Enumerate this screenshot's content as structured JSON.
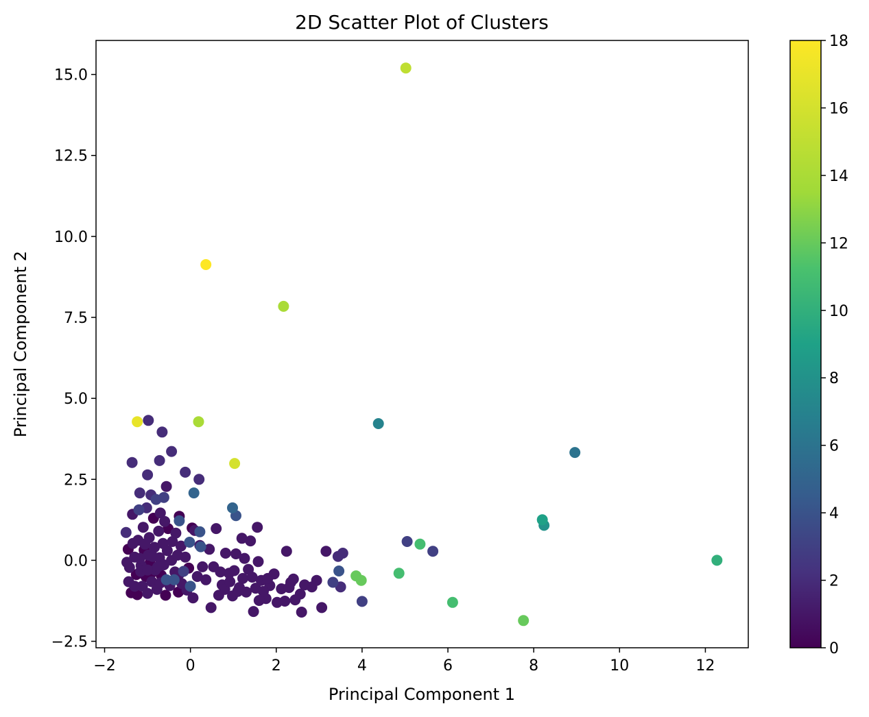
{
  "chart_data": {
    "type": "scatter",
    "title": "2D Scatter Plot of Clusters",
    "xlabel": "Principal Component 1",
    "ylabel": "Principal Component 2",
    "xlim": [
      -2.2,
      13.0
    ],
    "ylim": [
      -2.7,
      16.05
    ],
    "x_ticks": [
      -2,
      0,
      2,
      4,
      6,
      8,
      10,
      12
    ],
    "x_tick_labels": [
      "−2",
      "0",
      "2",
      "4",
      "6",
      "8",
      "10",
      "12"
    ],
    "y_ticks": [
      -2.5,
      0.0,
      2.5,
      5.0,
      7.5,
      10.0,
      12.5,
      15.0
    ],
    "y_tick_labels": [
      "−2.5",
      "0.0",
      "2.5",
      "5.0",
      "7.5",
      "10.0",
      "12.5",
      "15.0"
    ],
    "grid": false,
    "colorbar": {
      "colormap": "viridis",
      "range": [
        0,
        18
      ],
      "ticks": [
        0,
        2,
        4,
        6,
        8,
        10,
        12,
        14,
        16,
        18
      ],
      "tick_labels": [
        "0",
        "2",
        "4",
        "6",
        "8",
        "10",
        "12",
        "14",
        "16",
        "18"
      ]
    },
    "points": [
      {
        "x": 5.02,
        "y": 15.2,
        "c": 15
      },
      {
        "x": 0.36,
        "y": 9.13,
        "c": 18
      },
      {
        "x": 2.17,
        "y": 7.84,
        "c": 14
      },
      {
        "x": -1.24,
        "y": 4.28,
        "c": 17
      },
      {
        "x": 0.19,
        "y": 4.28,
        "c": 14
      },
      {
        "x": 1.03,
        "y": 2.99,
        "c": 16
      },
      {
        "x": 4.38,
        "y": 4.22,
        "c": 7
      },
      {
        "x": 8.96,
        "y": 3.33,
        "c": 6
      },
      {
        "x": 8.2,
        "y": 1.25,
        "c": 9
      },
      {
        "x": 8.24,
        "y": 1.08,
        "c": 8
      },
      {
        "x": 12.27,
        "y": 0.0,
        "c": 10
      },
      {
        "x": 5.35,
        "y": 0.5,
        "c": 11
      },
      {
        "x": 5.05,
        "y": 0.58,
        "c": 3
      },
      {
        "x": 5.65,
        "y": 0.28,
        "c": 3
      },
      {
        "x": 4.86,
        "y": -0.4,
        "c": 11
      },
      {
        "x": 6.11,
        "y": -1.3,
        "c": 11
      },
      {
        "x": 7.76,
        "y": -1.86,
        "c": 12
      },
      {
        "x": 3.86,
        "y": -0.48,
        "c": 12
      },
      {
        "x": 3.98,
        "y": -0.62,
        "c": 12
      },
      {
        "x": 4.0,
        "y": -1.27,
        "c": 3
      },
      {
        "x": 3.46,
        "y": -0.33,
        "c": 4
      },
      {
        "x": 3.32,
        "y": -0.68,
        "c": 3
      },
      {
        "x": 3.5,
        "y": -0.82,
        "c": 2
      },
      {
        "x": 3.55,
        "y": 0.22,
        "c": 2
      },
      {
        "x": 3.44,
        "y": 0.12,
        "c": 2
      },
      {
        "x": 3.16,
        "y": 0.28,
        "c": 1
      },
      {
        "x": 3.06,
        "y": -1.46,
        "c": 1
      },
      {
        "x": 2.94,
        "y": -0.62,
        "c": 1
      },
      {
        "x": 2.83,
        "y": -0.82,
        "c": 1
      },
      {
        "x": 2.66,
        "y": -0.76,
        "c": 1
      },
      {
        "x": 2.56,
        "y": -1.04,
        "c": 1
      },
      {
        "x": 2.59,
        "y": -1.6,
        "c": 1
      },
      {
        "x": 2.44,
        "y": -1.22,
        "c": 1
      },
      {
        "x": 2.34,
        "y": -0.68,
        "c": 1
      },
      {
        "x": 2.24,
        "y": 0.28,
        "c": 1
      },
      {
        "x": 2.2,
        "y": -1.26,
        "c": 1
      },
      {
        "x": 2.12,
        "y": -0.88,
        "c": 1
      },
      {
        "x": 2.02,
        "y": -1.3,
        "c": 1
      },
      {
        "x": 1.95,
        "y": -0.42,
        "c": 1
      },
      {
        "x": 1.85,
        "y": -0.78,
        "c": 1
      },
      {
        "x": 1.76,
        "y": -1.18,
        "c": 1
      },
      {
        "x": 1.65,
        "y": -0.62,
        "c": 1
      },
      {
        "x": 1.58,
        "y": -0.04,
        "c": 1
      },
      {
        "x": 1.56,
        "y": 1.02,
        "c": 1
      },
      {
        "x": 1.47,
        "y": -1.58,
        "c": 1
      },
      {
        "x": 1.4,
        "y": 0.6,
        "c": 1
      },
      {
        "x": 1.35,
        "y": -0.28,
        "c": 1
      },
      {
        "x": 1.26,
        "y": 0.06,
        "c": 1
      },
      {
        "x": 1.2,
        "y": 0.68,
        "c": 1
      },
      {
        "x": 1.14,
        "y": -0.84,
        "c": 1
      },
      {
        "x": 1.06,
        "y": 0.2,
        "c": 1
      },
      {
        "x": 0.98,
        "y": -1.1,
        "c": 1
      },
      {
        "x": 0.9,
        "y": -0.4,
        "c": 1
      },
      {
        "x": 0.82,
        "y": 0.22,
        "c": 1
      },
      {
        "x": 0.74,
        "y": -0.76,
        "c": 1
      },
      {
        "x": 0.66,
        "y": -1.08,
        "c": 1
      },
      {
        "x": 0.6,
        "y": 0.98,
        "c": 1
      },
      {
        "x": 0.54,
        "y": -0.2,
        "c": 1
      },
      {
        "x": 0.48,
        "y": -1.46,
        "c": 1
      },
      {
        "x": 0.44,
        "y": 0.34,
        "c": 1
      },
      {
        "x": 0.36,
        "y": -0.6,
        "c": 1
      },
      {
        "x": 0.28,
        "y": -0.2,
        "c": 1
      },
      {
        "x": 0.22,
        "y": 0.46,
        "c": 1
      },
      {
        "x": 0.16,
        "y": -0.5,
        "c": 1
      },
      {
        "x": 0.1,
        "y": 0.92,
        "c": 1
      },
      {
        "x": 0.06,
        "y": -1.16,
        "c": 1
      },
      {
        "x": 0.04,
        "y": 1.0,
        "c": 0
      },
      {
        "x": 0.08,
        "y": 2.08,
        "c": 5
      },
      {
        "x": 0.2,
        "y": 2.5,
        "c": 2
      },
      {
        "x": 0.22,
        "y": 0.88,
        "c": 4
      },
      {
        "x": 0.24,
        "y": 0.42,
        "c": 4
      },
      {
        "x": 0.0,
        "y": -0.8,
        "c": 4
      },
      {
        "x": -0.02,
        "y": 0.56,
        "c": 4
      },
      {
        "x": -0.12,
        "y": 2.72,
        "c": 2
      },
      {
        "x": -0.26,
        "y": 1.22,
        "c": 4
      },
      {
        "x": -0.26,
        "y": 1.36,
        "c": 0
      },
      {
        "x": -0.44,
        "y": 3.36,
        "c": 2
      },
      {
        "x": -0.66,
        "y": 3.96,
        "c": 2
      },
      {
        "x": -0.72,
        "y": 3.08,
        "c": 2
      },
      {
        "x": -0.98,
        "y": 4.32,
        "c": 2
      },
      {
        "x": -1.0,
        "y": 2.64,
        "c": 2
      },
      {
        "x": -0.56,
        "y": 2.28,
        "c": 1
      },
      {
        "x": -0.62,
        "y": 1.94,
        "c": 3
      },
      {
        "x": -1.36,
        "y": 3.02,
        "c": 2
      },
      {
        "x": -1.18,
        "y": 2.08,
        "c": 2
      },
      {
        "x": 0.98,
        "y": 1.62,
        "c": 5
      },
      {
        "x": 1.06,
        "y": 1.38,
        "c": 4
      },
      {
        "x": -1.5,
        "y": 0.86,
        "c": 2
      },
      {
        "x": -1.45,
        "y": 0.34,
        "c": 0
      },
      {
        "x": -1.42,
        "y": -0.22,
        "c": 1
      },
      {
        "x": -1.44,
        "y": -0.66,
        "c": 1
      },
      {
        "x": -1.38,
        "y": -1.0,
        "c": 0
      },
      {
        "x": -1.35,
        "y": 1.42,
        "c": 1
      },
      {
        "x": -1.3,
        "y": 0.1,
        "c": 1
      },
      {
        "x": -1.26,
        "y": -0.44,
        "c": 0
      },
      {
        "x": -1.24,
        "y": -1.06,
        "c": 0
      },
      {
        "x": -1.22,
        "y": 0.62,
        "c": 1
      },
      {
        "x": -1.2,
        "y": 1.56,
        "c": 3
      },
      {
        "x": -1.15,
        "y": -0.16,
        "c": 1
      },
      {
        "x": -1.12,
        "y": -0.8,
        "c": 1
      },
      {
        "x": -1.1,
        "y": 1.02,
        "c": 1
      },
      {
        "x": -1.08,
        "y": 0.32,
        "c": 0
      },
      {
        "x": -1.04,
        "y": -0.5,
        "c": 0
      },
      {
        "x": -1.02,
        "y": 1.62,
        "c": 2
      },
      {
        "x": -1.0,
        "y": -1.02,
        "c": 1
      },
      {
        "x": -0.96,
        "y": 0.7,
        "c": 1
      },
      {
        "x": -0.94,
        "y": -0.08,
        "c": 0
      },
      {
        "x": -0.92,
        "y": 2.02,
        "c": 2
      },
      {
        "x": -0.9,
        "y": -0.66,
        "c": 1
      },
      {
        "x": -0.86,
        "y": 1.3,
        "c": 0
      },
      {
        "x": -0.84,
        "y": 0.4,
        "c": 1
      },
      {
        "x": -0.82,
        "y": -0.3,
        "c": 1
      },
      {
        "x": -0.8,
        "y": 1.88,
        "c": 3
      },
      {
        "x": -0.78,
        "y": -0.9,
        "c": 1
      },
      {
        "x": -0.74,
        "y": 0.9,
        "c": 1
      },
      {
        "x": -0.72,
        "y": 0.08,
        "c": 1
      },
      {
        "x": -0.7,
        "y": 1.46,
        "c": 1
      },
      {
        "x": -0.68,
        "y": -0.46,
        "c": 0
      },
      {
        "x": -0.64,
        "y": 0.52,
        "c": 1
      },
      {
        "x": -0.62,
        "y": -0.14,
        "c": 1
      },
      {
        "x": -0.6,
        "y": 1.2,
        "c": 1
      },
      {
        "x": -0.58,
        "y": -1.08,
        "c": 0
      },
      {
        "x": -0.56,
        "y": -0.6,
        "c": 4
      },
      {
        "x": -0.54,
        "y": 0.3,
        "c": 1
      },
      {
        "x": -0.52,
        "y": 0.98,
        "c": 0
      },
      {
        "x": -0.48,
        "y": -0.78,
        "c": 1
      },
      {
        "x": -0.44,
        "y": 0.0,
        "c": 1
      },
      {
        "x": -0.42,
        "y": 0.58,
        "c": 1
      },
      {
        "x": -0.38,
        "y": -0.6,
        "c": 4
      },
      {
        "x": -0.36,
        "y": -0.36,
        "c": 1
      },
      {
        "x": -0.34,
        "y": 0.84,
        "c": 1
      },
      {
        "x": -0.3,
        "y": 0.16,
        "c": 1
      },
      {
        "x": -0.28,
        "y": -0.98,
        "c": 0
      },
      {
        "x": -0.26,
        "y": -0.42,
        "c": 1
      },
      {
        "x": -0.22,
        "y": 0.44,
        "c": 1
      },
      {
        "x": -0.2,
        "y": -0.72,
        "c": 1
      },
      {
        "x": -0.16,
        "y": -0.34,
        "c": 3
      },
      {
        "x": -0.12,
        "y": 0.1,
        "c": 1
      },
      {
        "x": -0.08,
        "y": -0.92,
        "c": 1
      },
      {
        "x": -0.04,
        "y": -0.24,
        "c": 0
      },
      {
        "x": -1.48,
        "y": -0.06,
        "c": 1
      },
      {
        "x": -1.34,
        "y": 0.52,
        "c": 1
      },
      {
        "x": -1.3,
        "y": -0.8,
        "c": 1
      },
      {
        "x": -1.18,
        "y": 0.06,
        "c": 1
      },
      {
        "x": -1.16,
        "y": -0.34,
        "c": 1
      },
      {
        "x": -1.06,
        "y": 0.5,
        "c": 1
      },
      {
        "x": -1.0,
        "y": -0.3,
        "c": 1
      },
      {
        "x": -0.98,
        "y": 0.16,
        "c": 1
      },
      {
        "x": -0.9,
        "y": -0.38,
        "c": 0
      },
      {
        "x": -0.88,
        "y": 0.12,
        "c": 1
      },
      {
        "x": -0.76,
        "y": -0.2,
        "c": 1
      },
      {
        "x": -0.7,
        "y": -0.7,
        "c": 1
      },
      {
        "x": 0.7,
        "y": -0.36,
        "c": 1
      },
      {
        "x": 0.8,
        "y": -0.9,
        "c": 1
      },
      {
        "x": 0.92,
        "y": -0.66,
        "c": 1
      },
      {
        "x": 1.02,
        "y": -0.32,
        "c": 1
      },
      {
        "x": 1.1,
        "y": -0.96,
        "c": 1
      },
      {
        "x": 1.22,
        "y": -0.56,
        "c": 1
      },
      {
        "x": 1.3,
        "y": -0.98,
        "c": 1
      },
      {
        "x": 1.44,
        "y": -0.52,
        "c": 1
      },
      {
        "x": 1.52,
        "y": -0.86,
        "c": 1
      },
      {
        "x": 1.6,
        "y": -1.24,
        "c": 1
      },
      {
        "x": 1.7,
        "y": -0.96,
        "c": 1
      },
      {
        "x": 1.8,
        "y": -0.56,
        "c": 1
      },
      {
        "x": 2.3,
        "y": -0.84,
        "c": 1
      },
      {
        "x": 2.4,
        "y": -0.58,
        "c": 1
      }
    ]
  }
}
